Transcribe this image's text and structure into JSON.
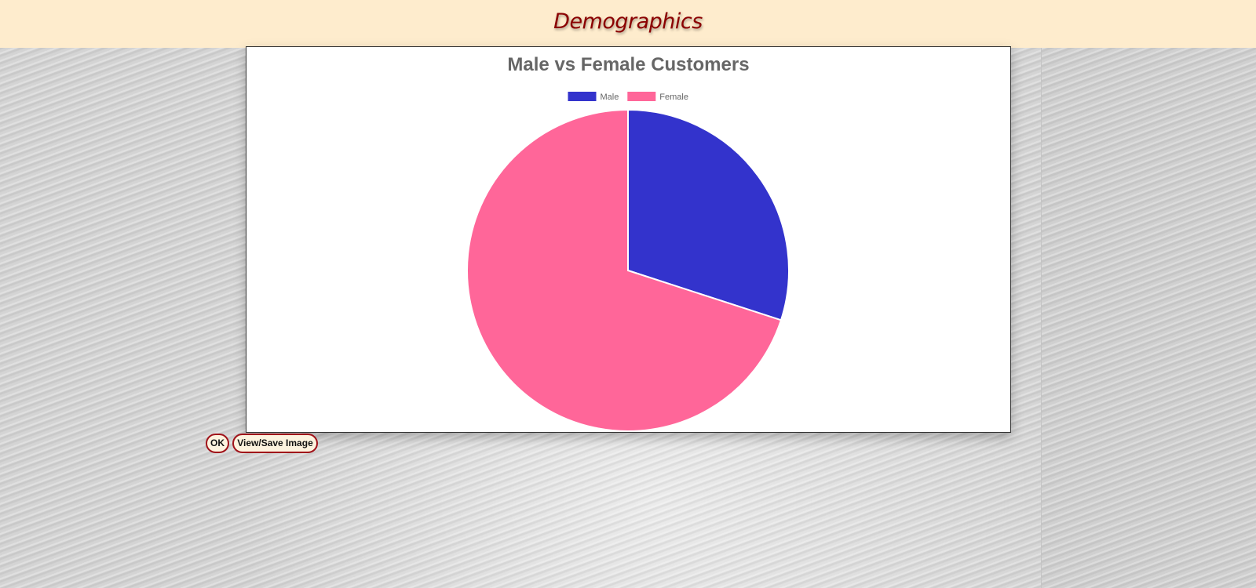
{
  "header": {
    "title": "Demographics"
  },
  "buttons": {
    "ok_label": "OK",
    "save_label": "View/Save Image"
  },
  "colors": {
    "male": "#3333cc",
    "female": "#ff6699",
    "header_bg": "#feeccd",
    "title_text": "#8b0000"
  },
  "chart_data": {
    "type": "pie",
    "title": "Male vs Female Customers",
    "categories": [
      "Male",
      "Female"
    ],
    "values": [
      30,
      70
    ],
    "colors": [
      "#3333cc",
      "#ff6699"
    ],
    "legend": "top"
  }
}
